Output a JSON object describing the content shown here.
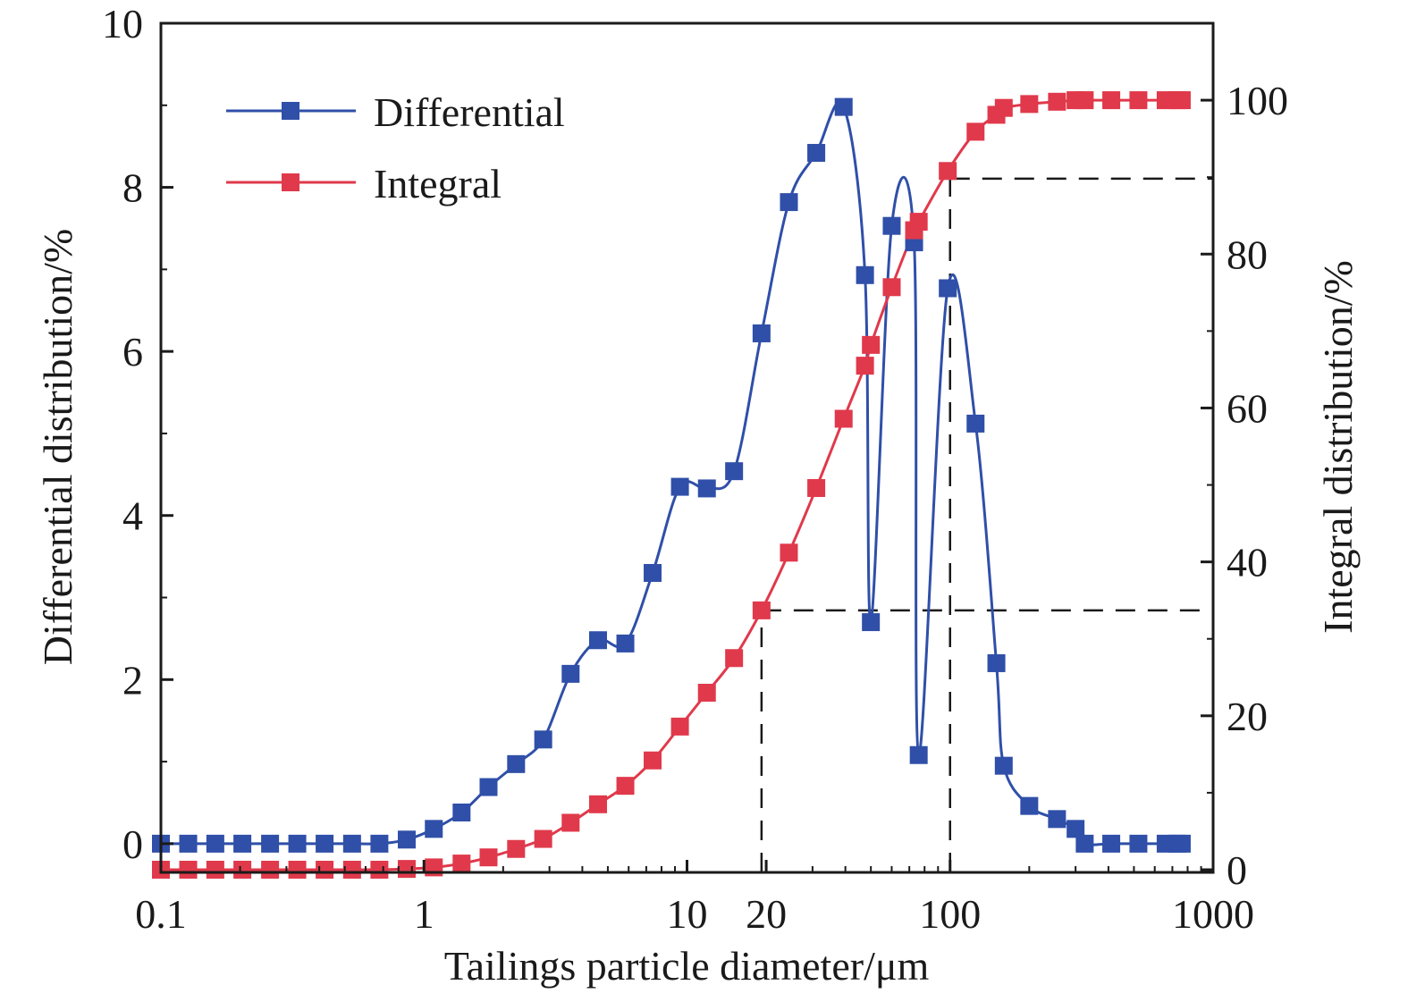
{
  "chart_data": {
    "type": "line",
    "xlabel": "Tailings particle diameter/μm",
    "ylabel_left": "Differential distribution/%",
    "ylabel_right": "Integral distribution/%",
    "x_scale": "log",
    "xlim": [
      0.1,
      1000
    ],
    "ylim_left": [
      -0.35,
      10
    ],
    "ylim_right": [
      -0.35,
      110
    ],
    "x_ticks": [
      {
        "value": 0.1,
        "label": "0.1"
      },
      {
        "value": 1,
        "label": "1"
      },
      {
        "value": 10,
        "label": "10"
      },
      {
        "value": 20,
        "label": "20"
      },
      {
        "value": 100,
        "label": "100"
      },
      {
        "value": 1000,
        "label": "1000"
      }
    ],
    "y_ticks_left": [
      {
        "value": 0,
        "label": "0"
      },
      {
        "value": 2,
        "label": "2"
      },
      {
        "value": 4,
        "label": "4"
      },
      {
        "value": 6,
        "label": "6"
      },
      {
        "value": 8,
        "label": "8"
      },
      {
        "value": 10,
        "label": "10"
      }
    ],
    "y_ticks_right": [
      {
        "value": 0,
        "label": "0"
      },
      {
        "value": 20,
        "label": "20"
      },
      {
        "value": 40,
        "label": "40"
      },
      {
        "value": 60,
        "label": "60"
      },
      {
        "value": 80,
        "label": "80"
      },
      {
        "value": 100,
        "label": "100"
      }
    ],
    "legend_position": "top-left",
    "series": [
      {
        "name": "Differential",
        "axis": "left",
        "color": "#2f4fa8",
        "marker": "square",
        "points": [
          [
            0.1,
            0.0
          ],
          [
            0.127,
            0.0
          ],
          [
            0.161,
            0.0
          ],
          [
            0.204,
            0.0
          ],
          [
            0.26,
            0.0
          ],
          [
            0.33,
            0.0
          ],
          [
            0.419,
            0.0
          ],
          [
            0.533,
            0.0
          ],
          [
            0.677,
            0.0
          ],
          [
            0.86,
            0.05
          ],
          [
            1.09,
            0.18
          ],
          [
            1.39,
            0.38
          ],
          [
            1.76,
            0.69
          ],
          [
            2.24,
            0.97
          ],
          [
            2.84,
            1.27
          ],
          [
            3.61,
            2.07
          ],
          [
            4.59,
            2.48
          ],
          [
            5.83,
            2.44
          ],
          [
            7.4,
            3.3
          ],
          [
            9.4,
            4.35
          ],
          [
            11.9,
            4.33
          ],
          [
            15.1,
            4.54
          ],
          [
            19.2,
            6.22
          ],
          [
            24.4,
            7.82
          ],
          [
            31.0,
            8.42
          ],
          [
            39.4,
            8.98
          ],
          [
            47.5,
            6.93
          ],
          [
            50.0,
            2.7
          ],
          [
            60.0,
            7.53
          ],
          [
            73.0,
            7.33
          ],
          [
            76.0,
            1.08
          ],
          [
            98.0,
            6.77
          ],
          [
            125.0,
            5.12
          ],
          [
            150.0,
            2.2
          ],
          [
            160.0,
            0.95
          ],
          [
            200.0,
            0.46
          ],
          [
            255.0,
            0.3
          ],
          [
            300.0,
            0.18
          ],
          [
            325.0,
            0.0
          ],
          [
            410.0,
            0.0
          ],
          [
            520.0,
            0.0
          ],
          [
            660.0,
            0.0
          ],
          [
            730.0,
            0.0
          ],
          [
            760.0,
            0.0
          ]
        ]
      },
      {
        "name": "Integral",
        "axis": "right",
        "color": "#e0394b",
        "marker": "square",
        "points": [
          [
            0.1,
            0.0
          ],
          [
            0.127,
            0.0
          ],
          [
            0.161,
            0.0
          ],
          [
            0.204,
            0.0
          ],
          [
            0.26,
            0.0
          ],
          [
            0.33,
            0.0
          ],
          [
            0.419,
            0.0
          ],
          [
            0.533,
            0.0
          ],
          [
            0.677,
            0.0
          ],
          [
            0.86,
            0.1
          ],
          [
            1.09,
            0.3
          ],
          [
            1.39,
            0.8
          ],
          [
            1.76,
            1.6
          ],
          [
            2.24,
            2.7
          ],
          [
            2.84,
            4.0
          ],
          [
            3.61,
            6.1
          ],
          [
            4.59,
            8.5
          ],
          [
            5.83,
            10.9
          ],
          [
            7.4,
            14.2
          ],
          [
            9.4,
            18.6
          ],
          [
            11.9,
            23.0
          ],
          [
            15.1,
            27.5
          ],
          [
            19.2,
            33.7
          ],
          [
            24.4,
            41.2
          ],
          [
            31.0,
            49.6
          ],
          [
            39.4,
            58.6
          ],
          [
            47.5,
            65.5
          ],
          [
            50.0,
            68.2
          ],
          [
            60.0,
            75.7
          ],
          [
            73.0,
            83.1
          ],
          [
            76.0,
            84.2
          ],
          [
            98.0,
            90.8
          ],
          [
            125.0,
            95.9
          ],
          [
            150.0,
            98.1
          ],
          [
            160.0,
            99.0
          ],
          [
            200.0,
            99.5
          ],
          [
            255.0,
            99.8
          ],
          [
            300.0,
            100.0
          ],
          [
            325.0,
            100.0
          ],
          [
            410.0,
            100.0
          ],
          [
            520.0,
            100.0
          ],
          [
            660.0,
            100.0
          ],
          [
            730.0,
            100.0
          ],
          [
            760.0,
            100.0
          ]
        ]
      }
    ],
    "reference_lines": [
      {
        "x": 19.2,
        "y_right": 33.7
      },
      {
        "x": 100,
        "y_right": 89.8
      }
    ]
  }
}
